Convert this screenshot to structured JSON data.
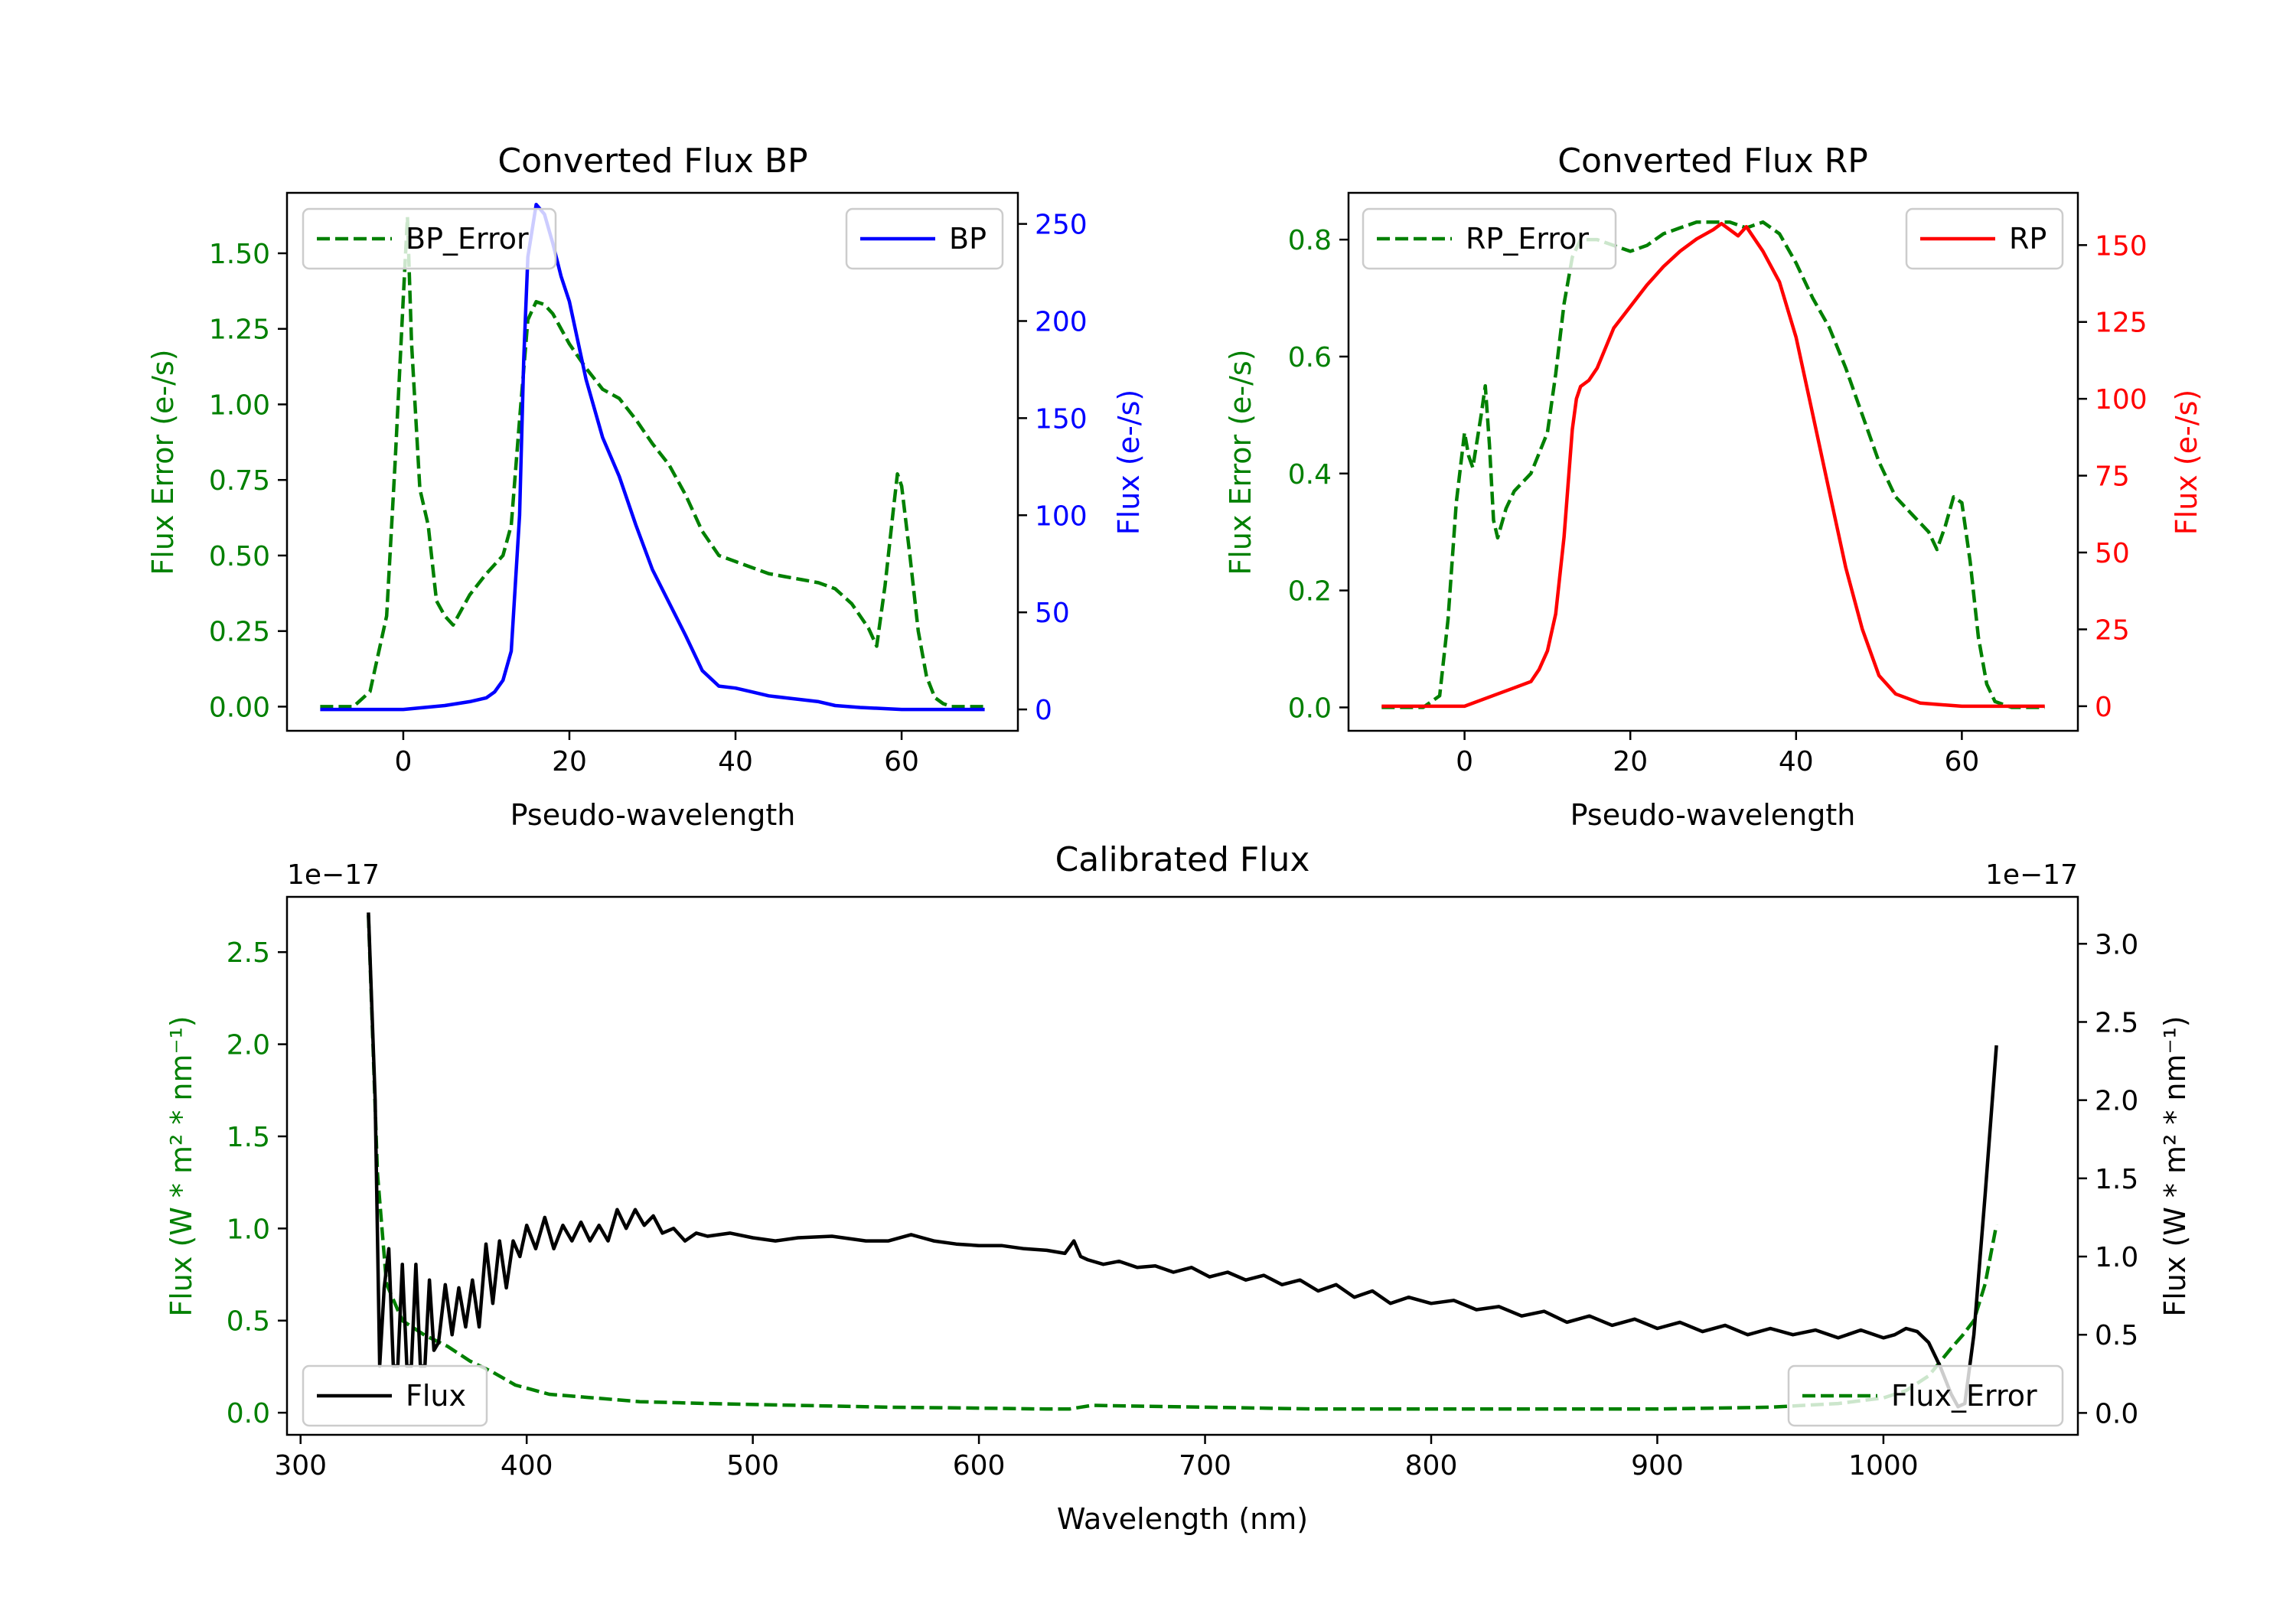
{
  "colors": {
    "green": "#008000",
    "blue": "#0000ff",
    "red": "#ff0000",
    "black": "#000000"
  },
  "chart_data": [
    {
      "id": "bp",
      "type": "line",
      "title": "Converted Flux BP",
      "xlabel": "Pseudo-wavelength",
      "ylabel_left": "Flux Error (e-/s)",
      "ylabel_right": "Flux (e-/s)",
      "xlim": [
        -14,
        74
      ],
      "ylim_left": [
        -0.08,
        1.7
      ],
      "ylim_right": [
        -11,
        266
      ],
      "x_ticks": [
        0,
        20,
        40,
        60
      ],
      "y_left_ticks": [
        "0.00",
        "0.25",
        "0.50",
        "0.75",
        "1.00",
        "1.25",
        "1.50"
      ],
      "y_right_ticks": [
        0,
        50,
        100,
        150,
        200,
        250
      ],
      "legend": {
        "error": "BP_Error",
        "flux": "BP"
      },
      "series": [
        {
          "name": "BP_Error",
          "axis": "left",
          "color": "#008000",
          "style": "dashed",
          "x": [
            -10,
            -6,
            -4,
            -2,
            -1,
            0,
            0.5,
            1,
            2,
            3,
            4,
            5,
            6,
            7,
            8,
            10,
            12,
            13,
            14,
            15,
            16,
            17,
            18,
            20,
            22,
            24,
            26,
            28,
            30,
            32,
            34,
            36,
            38,
            40,
            42,
            44,
            46,
            48,
            50,
            52,
            54,
            56,
            57,
            58,
            59,
            59.5,
            60,
            61,
            62,
            63,
            64,
            65,
            66,
            68,
            70
          ],
          "y": [
            0,
            0,
            0.05,
            0.3,
            0.8,
            1.35,
            1.62,
            1.2,
            0.72,
            0.6,
            0.35,
            0.3,
            0.27,
            0.32,
            0.37,
            0.44,
            0.5,
            0.6,
            0.95,
            1.28,
            1.34,
            1.33,
            1.3,
            1.2,
            1.12,
            1.05,
            1.02,
            0.95,
            0.87,
            0.8,
            0.7,
            0.58,
            0.5,
            0.48,
            0.46,
            0.44,
            0.43,
            0.42,
            0.41,
            0.39,
            0.34,
            0.26,
            0.2,
            0.4,
            0.65,
            0.77,
            0.73,
            0.5,
            0.25,
            0.1,
            0.03,
            0.01,
            0,
            0,
            0
          ]
        },
        {
          "name": "BP",
          "axis": "right",
          "color": "#0000ff",
          "style": "solid",
          "x": [
            -10,
            0,
            5,
            8,
            10,
            11,
            12,
            13,
            14,
            14.5,
            15,
            16,
            17,
            18,
            19,
            20,
            22,
            24,
            26,
            28,
            30,
            32,
            34,
            36,
            38,
            40,
            42,
            44,
            46,
            48,
            50,
            52,
            55,
            60,
            65,
            70
          ],
          "y": [
            0,
            0,
            2,
            4,
            6,
            9,
            15,
            30,
            100,
            180,
            233,
            260,
            255,
            240,
            223,
            210,
            170,
            140,
            120,
            95,
            72,
            55,
            38,
            20,
            12,
            11,
            9,
            7,
            6,
            5,
            4,
            2,
            1,
            0,
            0,
            0
          ]
        }
      ]
    },
    {
      "id": "rp",
      "type": "line",
      "title": "Converted Flux RP",
      "xlabel": "Pseudo-wavelength",
      "ylabel_left": "Flux Error (e-/s)",
      "ylabel_right": "Flux (e-/s)",
      "xlim": [
        -14,
        74
      ],
      "ylim_left": [
        -0.04,
        0.88
      ],
      "ylim_right": [
        -8,
        167
      ],
      "x_ticks": [
        0,
        20,
        40,
        60
      ],
      "y_left_ticks": [
        "0.0",
        "0.2",
        "0.4",
        "0.6",
        "0.8"
      ],
      "y_right_ticks": [
        0,
        25,
        50,
        75,
        100,
        125,
        150
      ],
      "legend": {
        "error": "RP_Error",
        "flux": "RP"
      },
      "series": [
        {
          "name": "RP_Error",
          "axis": "left",
          "color": "#008000",
          "style": "dashed",
          "x": [
            -10,
            -5,
            -3,
            -2,
            -1,
            0,
            0.5,
            1,
            2,
            2.5,
            3,
            3.5,
            4,
            5,
            6,
            8,
            10,
            11,
            12,
            13,
            14,
            16,
            18,
            20,
            22,
            24,
            26,
            28,
            30,
            32,
            34,
            36,
            38,
            40,
            42,
            44,
            46,
            48,
            50,
            52,
            54,
            56,
            57,
            58,
            59,
            60,
            61,
            62,
            63,
            64,
            66,
            70
          ],
          "y": [
            0,
            0,
            0.02,
            0.15,
            0.35,
            0.47,
            0.43,
            0.41,
            0.5,
            0.55,
            0.45,
            0.32,
            0.29,
            0.34,
            0.37,
            0.4,
            0.47,
            0.57,
            0.69,
            0.77,
            0.8,
            0.8,
            0.79,
            0.78,
            0.79,
            0.81,
            0.82,
            0.83,
            0.83,
            0.83,
            0.82,
            0.83,
            0.81,
            0.76,
            0.7,
            0.65,
            0.58,
            0.5,
            0.42,
            0.36,
            0.33,
            0.3,
            0.27,
            0.31,
            0.36,
            0.35,
            0.25,
            0.12,
            0.04,
            0.01,
            0,
            0
          ]
        },
        {
          "name": "RP",
          "axis": "right",
          "color": "#ff0000",
          "style": "solid",
          "x": [
            -10,
            0,
            4,
            6,
            8,
            9,
            10,
            11,
            12,
            13,
            13.5,
            14,
            15,
            16,
            18,
            20,
            22,
            24,
            26,
            28,
            30,
            31,
            32,
            33,
            34,
            35,
            36,
            38,
            40,
            42,
            44,
            46,
            48,
            50,
            52,
            55,
            60,
            65,
            70
          ],
          "y": [
            0,
            0,
            4,
            6,
            8,
            12,
            18,
            30,
            55,
            90,
            100,
            104,
            106,
            110,
            123,
            130,
            137,
            143,
            148,
            152,
            155,
            157,
            155,
            153,
            156,
            152,
            148,
            138,
            120,
            95,
            70,
            45,
            25,
            10,
            4,
            1,
            0,
            0,
            0
          ]
        }
      ]
    },
    {
      "id": "calibrated",
      "type": "line",
      "title": "Calibrated Flux",
      "xlabel": "Wavelength (nm)",
      "ylabel_left": "Flux (W * m² * nm⁻¹)",
      "ylabel_right": "Flux (W * m² * nm⁻¹)",
      "xlim": [
        294,
        1086
      ],
      "ylim_left": [
        -0.12,
        2.8
      ],
      "ylim_right": [
        -0.14,
        3.3
      ],
      "offset_left": "1e−17",
      "offset_right": "1e−17",
      "x_ticks": [
        300,
        400,
        500,
        600,
        700,
        800,
        900,
        1000
      ],
      "y_left_ticks": [
        "0.0",
        "0.5",
        "1.0",
        "1.5",
        "2.0",
        "2.5"
      ],
      "y_right_ticks": [
        "0.0",
        "0.5",
        "1.0",
        "1.5",
        "2.0",
        "2.5",
        "3.0"
      ],
      "legend": {
        "flux": "Flux",
        "error": "Flux_Error"
      },
      "series": [
        {
          "name": "Flux",
          "axis": "right",
          "color": "#000000",
          "style": "solid",
          "unit_scale": "1e-17",
          "x": [
            330,
            333,
            335,
            337,
            339,
            341,
            343,
            345,
            347,
            349,
            351,
            353,
            355,
            357,
            359,
            361,
            364,
            367,
            370,
            373,
            376,
            379,
            382,
            385,
            388,
            391,
            394,
            397,
            400,
            404,
            408,
            412,
            416,
            420,
            424,
            428,
            432,
            436,
            440,
            444,
            448,
            452,
            456,
            460,
            465,
            470,
            475,
            480,
            490,
            500,
            510,
            520,
            535,
            550,
            560,
            570,
            575,
            580,
            590,
            600,
            610,
            620,
            630,
            638,
            642,
            645,
            648,
            655,
            662,
            670,
            678,
            686,
            694,
            702,
            710,
            718,
            726,
            734,
            742,
            750,
            758,
            766,
            774,
            782,
            790,
            800,
            810,
            820,
            830,
            840,
            850,
            860,
            870,
            880,
            890,
            900,
            910,
            920,
            930,
            940,
            950,
            960,
            970,
            980,
            990,
            1000,
            1005,
            1010,
            1015,
            1020,
            1025,
            1030,
            1033,
            1036,
            1040,
            1045,
            1050
          ],
          "y": [
            3.2,
            2,
            0.3,
            0.8,
            1.05,
            0.3,
            0.3,
            0.95,
            0.3,
            0.3,
            0.95,
            0.3,
            0.3,
            0.85,
            0.4,
            0.45,
            0.82,
            0.5,
            0.8,
            0.55,
            0.85,
            0.55,
            1.08,
            0.7,
            1.1,
            0.8,
            1.1,
            1.0,
            1.2,
            1.05,
            1.25,
            1.05,
            1.2,
            1.1,
            1.22,
            1.1,
            1.2,
            1.1,
            1.3,
            1.18,
            1.3,
            1.2,
            1.26,
            1.15,
            1.18,
            1.1,
            1.15,
            1.13,
            1.15,
            1.12,
            1.1,
            1.12,
            1.13,
            1.1,
            1.1,
            1.14,
            1.12,
            1.1,
            1.08,
            1.07,
            1.07,
            1.05,
            1.04,
            1.02,
            1.1,
            1.0,
            0.98,
            0.95,
            0.97,
            0.93,
            0.94,
            0.9,
            0.93,
            0.87,
            0.9,
            0.85,
            0.88,
            0.82,
            0.85,
            0.78,
            0.82,
            0.74,
            0.78,
            0.7,
            0.74,
            0.7,
            0.72,
            0.66,
            0.68,
            0.62,
            0.65,
            0.58,
            0.62,
            0.56,
            0.6,
            0.54,
            0.58,
            0.52,
            0.56,
            0.5,
            0.54,
            0.5,
            0.53,
            0.48,
            0.53,
            0.48,
            0.5,
            0.54,
            0.52,
            0.45,
            0.3,
            0.12,
            0.04,
            0.06,
            0.5,
            1.4,
            2.35
          ]
        },
        {
          "name": "Flux_Error",
          "axis": "left",
          "color": "#008000",
          "style": "dashed",
          "unit_scale": "1e-17",
          "x": [
            330,
            334,
            338,
            345,
            355,
            365,
            375,
            385,
            395,
            410,
            430,
            450,
            480,
            520,
            560,
            600,
            630,
            640,
            650,
            700,
            750,
            800,
            850,
            900,
            950,
            980,
            1000,
            1010,
            1020,
            1030,
            1035,
            1040,
            1045,
            1050
          ],
          "y": [
            2.7,
            1.3,
            0.7,
            0.5,
            0.42,
            0.36,
            0.28,
            0.22,
            0.15,
            0.1,
            0.08,
            0.06,
            0.05,
            0.04,
            0.03,
            0.025,
            0.02,
            0.02,
            0.04,
            0.03,
            0.02,
            0.02,
            0.02,
            0.02,
            0.03,
            0.05,
            0.08,
            0.12,
            0.2,
            0.35,
            0.42,
            0.5,
            0.7,
            1.02
          ]
        }
      ]
    }
  ]
}
